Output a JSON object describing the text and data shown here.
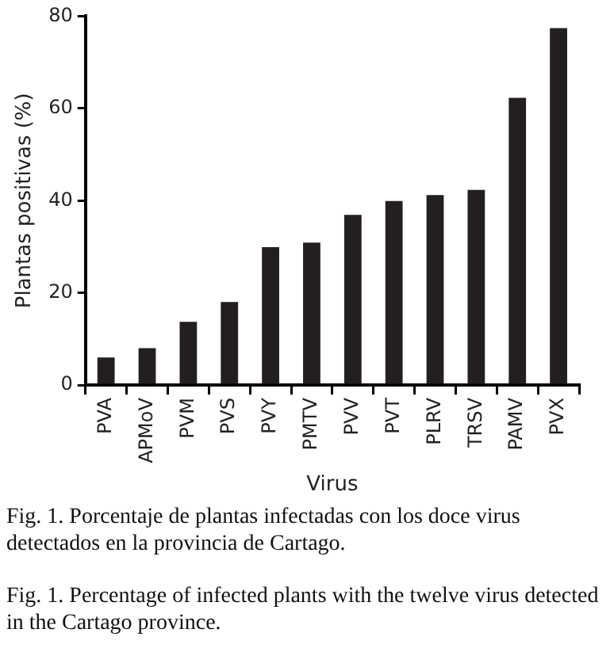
{
  "chart_data": {
    "type": "bar",
    "xlabel": "Virus",
    "ylabel": "Plantas positivas (%)",
    "categories": [
      "PVA",
      "APMoV",
      "PVM",
      "PVS",
      "PVY",
      "PMTV",
      "PVV",
      "PVT",
      "PLRV",
      "TRSV",
      "PAMV",
      "PVX"
    ],
    "values": [
      6,
      8,
      13.7,
      18,
      29.9,
      30.9,
      36.9,
      39.9,
      41.2,
      42.3,
      62.3,
      77.4
    ],
    "color": "#231f20",
    "ylim": [
      0,
      80
    ],
    "yticks": [
      0,
      20,
      40,
      60,
      80
    ],
    "grid": false,
    "legend": false,
    "annotations": [
      "Fig. 1. Porcentaje de plantas infectadas con los doce virus detectados en la provincia de Cartago.",
      "Fig. 1. Percentage of infected plants with the twelve virus detected in the Cartago province."
    ]
  }
}
